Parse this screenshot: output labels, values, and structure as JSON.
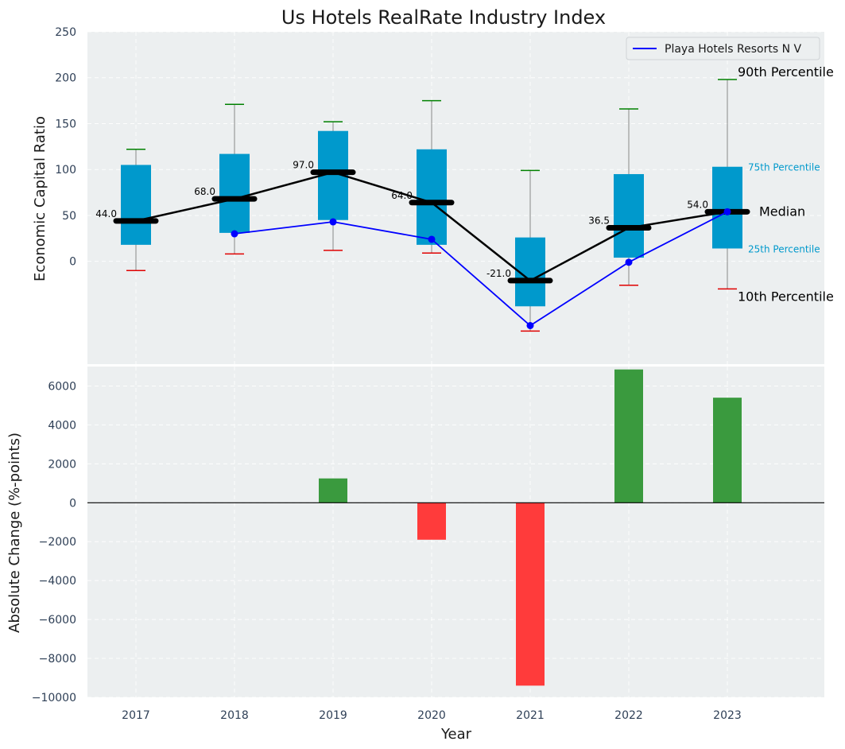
{
  "chart_data": [
    {
      "type": "box",
      "title": "Us Hotels RealRate Industry Index",
      "xlabel": "",
      "ylabel": "Economic Capital Ratio",
      "ylim": [
        -112,
        250
      ],
      "yticks": [
        0,
        50,
        100,
        150,
        200,
        250
      ],
      "categories": [
        "2017",
        "2018",
        "2019",
        "2020",
        "2021",
        "2022",
        "2023"
      ],
      "boxes": [
        {
          "year": "2017",
          "p10": -10,
          "p25": 18,
          "median": 44,
          "p75": 105,
          "p90": 122,
          "median_label": "44.0"
        },
        {
          "year": "2018",
          "p10": 8,
          "p25": 31,
          "median": 68,
          "p75": 117,
          "p90": 171,
          "median_label": "68.0"
        },
        {
          "year": "2019",
          "p10": 12,
          "p25": 45,
          "median": 97,
          "p75": 142,
          "p90": 152,
          "median_label": "97.0"
        },
        {
          "year": "2020",
          "p10": 9,
          "p25": 18,
          "median": 64,
          "p75": 122,
          "p90": 175,
          "median_label": "64.0"
        },
        {
          "year": "2021",
          "p10": -76,
          "p25": -49,
          "median": -21,
          "p75": 26,
          "p90": 99,
          "median_label": "-21.0"
        },
        {
          "year": "2022",
          "p10": -26,
          "p25": 4,
          "median": 36.5,
          "p75": 95,
          "p90": 166,
          "median_label": "36.5"
        },
        {
          "year": "2023",
          "p10": -30,
          "p25": 14,
          "median": 54,
          "p75": 103,
          "p90": 198,
          "median_label": "54.0"
        }
      ],
      "series": [
        {
          "name": "Playa Hotels Resorts N V",
          "color": "#0000ff",
          "x": [
            "2018",
            "2019",
            "2020",
            "2021",
            "2022",
            "2023"
          ],
          "values": [
            30,
            43,
            24,
            -70,
            -1,
            54
          ]
        }
      ],
      "legend": "top-right",
      "grid": true,
      "annotations": {
        "p90": "90th Percentile",
        "p75": "75th Percentile",
        "median": "Median",
        "p25": "25th Percentile",
        "p10": "10th Percentile"
      },
      "colors": {
        "box": "#0099cc",
        "median_line": "#000000",
        "whisker_top": "#008000",
        "whisker_bottom": "#e00000",
        "background": "#eceff0"
      }
    },
    {
      "type": "bar",
      "xlabel": "Year",
      "ylabel": "Absolute Change (%-points)",
      "ylim": [
        -10000,
        7000
      ],
      "yticks": [
        -10000,
        -8000,
        -6000,
        -4000,
        -2000,
        0,
        2000,
        4000,
        6000
      ],
      "categories": [
        "2017",
        "2018",
        "2019",
        "2020",
        "2021",
        "2022",
        "2023"
      ],
      "values": [
        0,
        0,
        1250,
        -1900,
        -9400,
        6850,
        5400
      ],
      "colors": {
        "positive": "#3a9a3e",
        "negative": "#ff3b3b",
        "background": "#eceff0"
      }
    }
  ]
}
